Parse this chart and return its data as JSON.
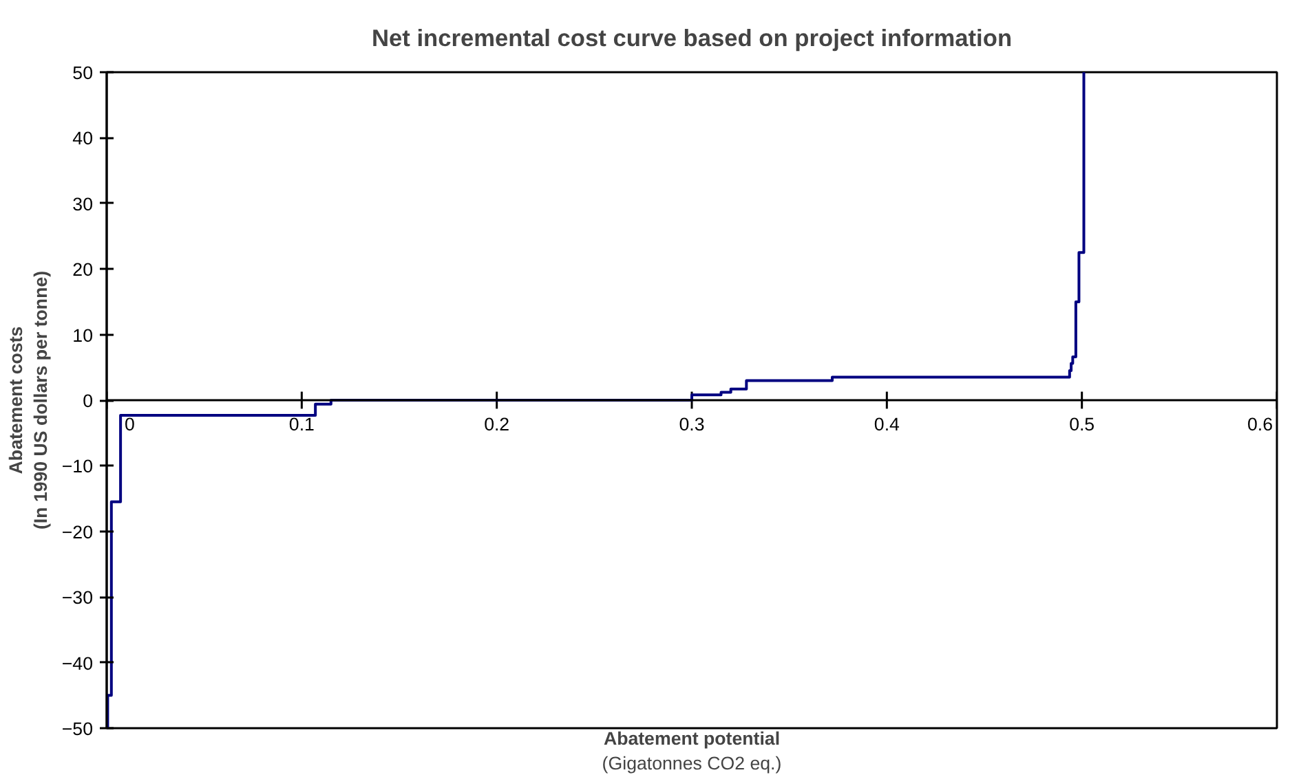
{
  "chart_data": {
    "type": "step",
    "title": "Net incremental cost curve based on project information",
    "xlabel": "Abatement potential\n(Gigatonnes CO2 eq.)",
    "ylabel": "Abatement costs\n(In 1990 US dollars per tonne)",
    "x": [
      0,
      0.0005,
      0.0024,
      0.0071,
      0.107,
      0.115,
      0.3,
      0.315,
      0.32,
      0.328,
      0.372,
      0.4937,
      0.4945,
      0.4953,
      0.4969,
      0.4985,
      0.501,
      0.501
    ],
    "series": [
      {
        "color": "#000080",
        "values": [
          -50,
          -45,
          -15.5,
          -2.3,
          -0.6,
          0,
          0.8,
          1.2,
          1.7,
          3,
          3.5,
          4.5,
          5.6,
          6.6,
          15,
          22.5,
          26.7,
          50
        ]
      }
    ],
    "xlim": [
      0,
      0.6
    ],
    "xticks": [
      0,
      0.1,
      0.2,
      0.3,
      0.4,
      0.5,
      0.6
    ],
    "ylim": [
      -50,
      50
    ],
    "yticks": [
      -50,
      -40,
      -30,
      -20,
      -10,
      0,
      10,
      20,
      30,
      40,
      50
    ],
    "grid": false
  }
}
